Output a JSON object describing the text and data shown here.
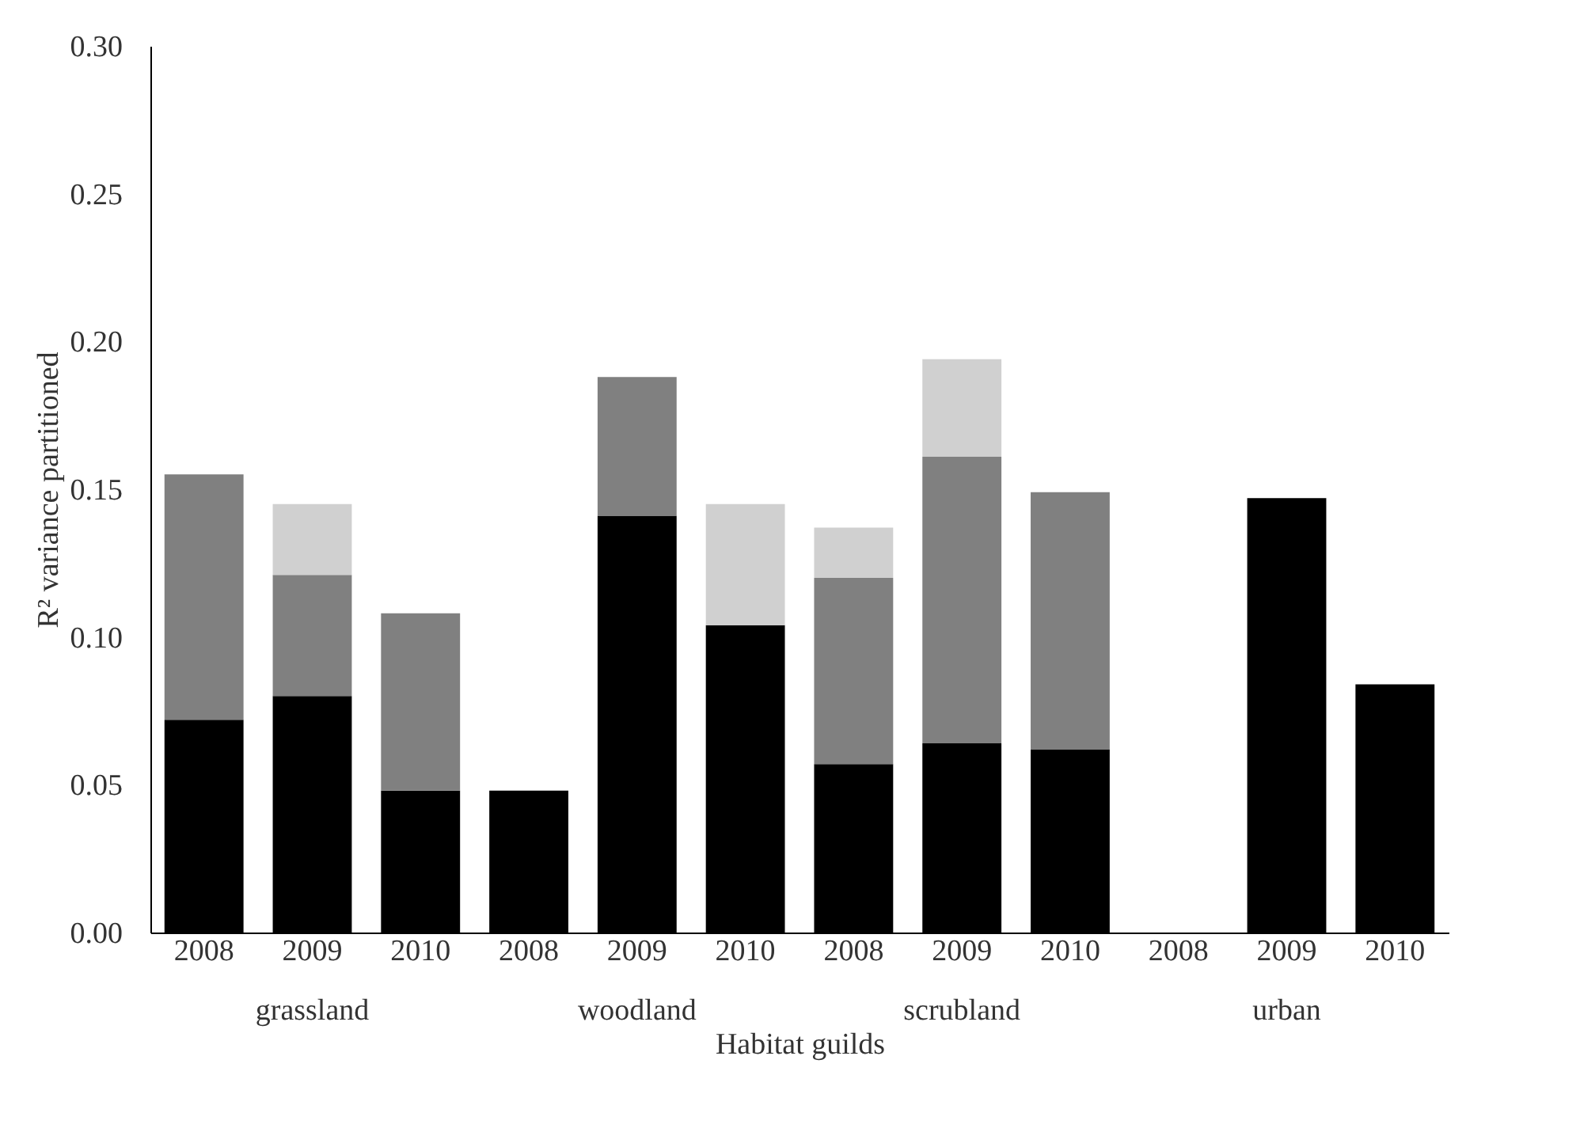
{
  "chart_data": {
    "type": "bar",
    "xlabel": "Habitat guilds",
    "ylabel": "R² variance partitioned",
    "categories": [
      "2008",
      "2009",
      "2010",
      "2008",
      "2009",
      "2010",
      "2008",
      "2009",
      "2010",
      "2008",
      "2009",
      "2010"
    ],
    "annotations": [
      "grassland",
      "woodland",
      "scrubland",
      "urban"
    ],
    "stacked": true,
    "series": [
      {
        "color": "#000000",
        "values": [
          0.072,
          0.08,
          0.048,
          0.048,
          0.141,
          0.104,
          0.057,
          0.064,
          0.062,
          0,
          0.147,
          0.084
        ]
      },
      {
        "color": "#808080",
        "values": [
          0.083,
          0.041,
          0.06,
          null,
          0.047,
          null,
          0.063,
          0.097,
          0.087,
          null,
          null,
          null
        ]
      },
      {
        "color": "#d0d0d0",
        "values": [
          null,
          0.024,
          null,
          null,
          null,
          0.041,
          0.017,
          0.033,
          null,
          null,
          null,
          null
        ]
      }
    ],
    "ylim": [
      0,
      0.3
    ],
    "yticks": [
      {
        "value": 0,
        "label": "0.00"
      },
      {
        "value": 0.05,
        "label": "0.05"
      },
      {
        "value": 0.1,
        "label": "0.10"
      },
      {
        "value": 0.15,
        "label": "0.15"
      },
      {
        "value": 0.2,
        "label": "0.20"
      },
      {
        "value": 0.25,
        "label": "0.25"
      },
      {
        "value": 0.3,
        "label": "0.30"
      }
    ],
    "grid": false
  }
}
